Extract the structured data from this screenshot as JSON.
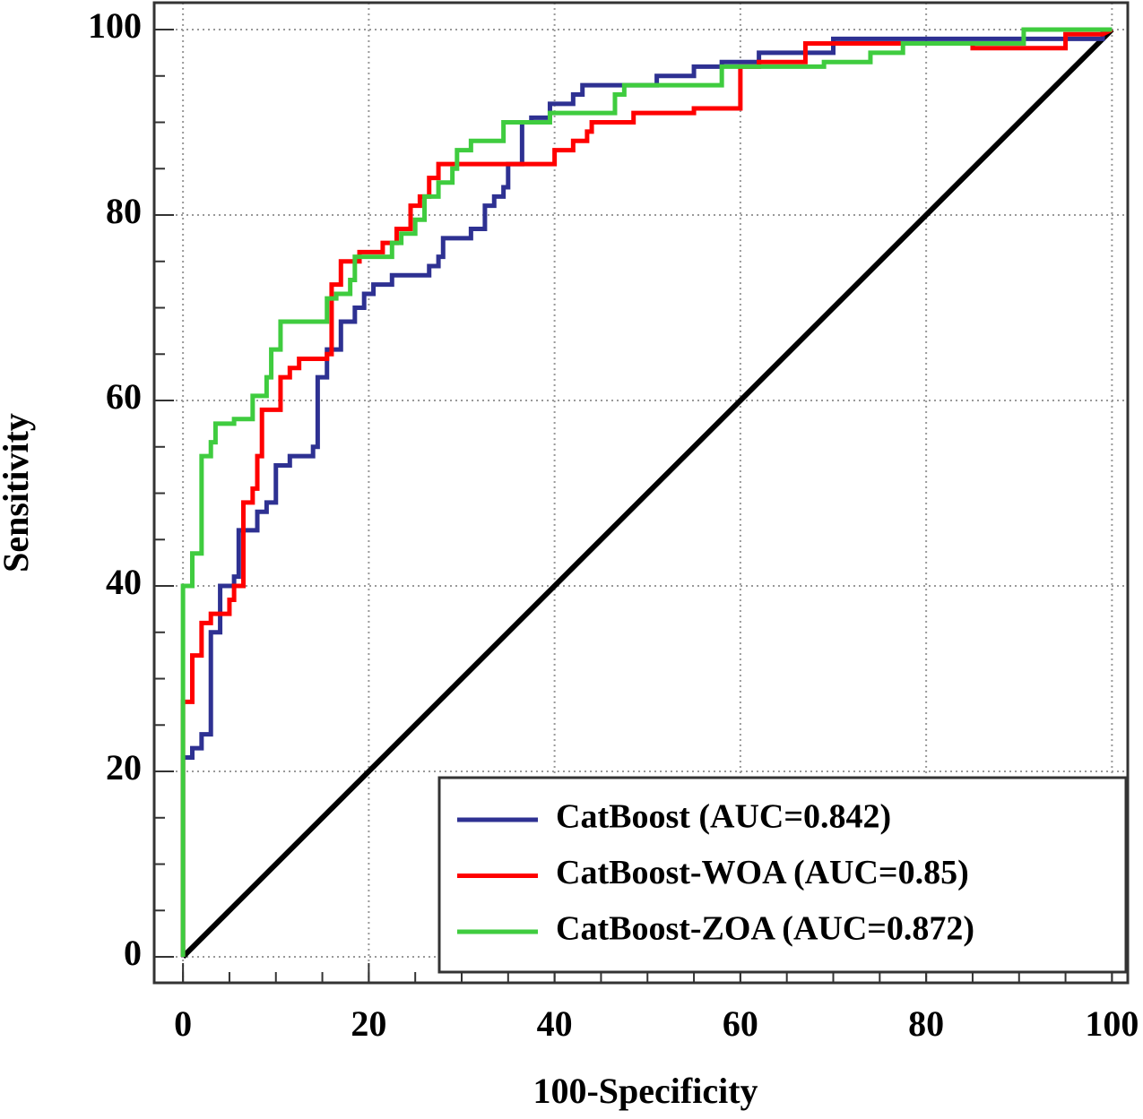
{
  "chart_data": {
    "type": "line",
    "xlabel": "100-Specificity",
    "ylabel": "Sensitivity",
    "xlim": [
      -3.1,
      101.7
    ],
    "ylim": [
      -2.8,
      102.9
    ],
    "xticks": [
      0,
      20,
      40,
      60,
      80,
      100
    ],
    "yticks": [
      0,
      20,
      40,
      60,
      80,
      100
    ],
    "minor_tick_step": 5,
    "grid": true,
    "legend": "lower right",
    "diagonal": {
      "x": [
        0,
        100
      ],
      "values": [
        0,
        100
      ],
      "color": "#000000"
    },
    "series": [
      {
        "name": "CatBoost (AUC=0.842)",
        "color": "#2e3192",
        "x": [
          0,
          0,
          1,
          1,
          2,
          2,
          3,
          3,
          4,
          4,
          5.5,
          5.5,
          6,
          6,
          8,
          8,
          9,
          9,
          10,
          10,
          11.5,
          11.5,
          14,
          14,
          14.5,
          14.5,
          15.5,
          15.5,
          17,
          17,
          18.5,
          18.5,
          19.5,
          19.5,
          20.5,
          20.5,
          22.5,
          22.5,
          26.5,
          26.5,
          27.5,
          27.5,
          28,
          28,
          31,
          31,
          32.5,
          32.5,
          33.5,
          33.5,
          34.5,
          34.5,
          35,
          35,
          36.5,
          36.5,
          37.5,
          37.5,
          39.5,
          39.5,
          42,
          42,
          43,
          43,
          51,
          51,
          55,
          55,
          58,
          58,
          62,
          62,
          70,
          70,
          99,
          99,
          100
        ],
        "values": [
          0,
          21.5,
          21.5,
          22.5,
          22.5,
          24,
          24,
          35,
          35,
          40,
          40,
          41,
          41,
          46,
          46,
          48,
          48,
          49,
          49,
          53,
          53,
          54,
          54,
          55,
          55,
          62.5,
          62.5,
          65.5,
          65.5,
          68.5,
          68.5,
          70,
          70,
          71.5,
          71.5,
          72.5,
          72.5,
          73.5,
          73.5,
          74.5,
          74.5,
          75.5,
          75.5,
          77.5,
          77.5,
          78.5,
          78.5,
          81,
          81,
          82,
          82,
          83,
          83,
          85.5,
          85.5,
          90,
          90,
          90.5,
          90.5,
          92,
          92,
          93,
          93,
          94,
          94,
          95,
          95,
          96,
          96,
          96.5,
          96.5,
          97.5,
          97.5,
          99,
          99,
          100,
          100
        ]
      },
      {
        "name": "CatBoost-WOA (AUC=0.85)",
        "color": "#ff0000",
        "x": [
          0,
          0,
          1,
          1,
          2,
          2,
          3,
          3,
          5,
          5,
          5.5,
          5.5,
          6.5,
          6.5,
          7.5,
          7.5,
          8,
          8,
          8.5,
          8.5,
          10.5,
          10.5,
          11.5,
          11.5,
          12.5,
          12.5,
          15.5,
          15.5,
          16,
          16,
          17,
          17,
          19,
          19,
          21.5,
          21.5,
          23,
          23,
          24.5,
          24.5,
          25.5,
          25.5,
          26.5,
          26.5,
          27.5,
          27.5,
          40,
          40,
          42,
          42,
          43.5,
          43.5,
          44,
          44,
          48.5,
          48.5,
          55,
          55,
          60,
          60,
          62,
          62,
          67,
          67,
          85,
          85,
          95,
          95,
          99,
          100
        ],
        "values": [
          0,
          27.5,
          27.5,
          32.5,
          32.5,
          36,
          36,
          37,
          37,
          38.5,
          38.5,
          40,
          40,
          49,
          49,
          50.5,
          50.5,
          54,
          54,
          59,
          59,
          62.5,
          62.5,
          63.5,
          63.5,
          64.5,
          64.5,
          65,
          65,
          72.5,
          72.5,
          75,
          75,
          76,
          76,
          77,
          77,
          78.5,
          78.5,
          81,
          81,
          82,
          82,
          84,
          84,
          85.5,
          85.5,
          87,
          87,
          88,
          88,
          89,
          89,
          90,
          90,
          91,
          91,
          91.5,
          91.5,
          96,
          96,
          96.5,
          96.5,
          98.5,
          98.5,
          98,
          98,
          99.5,
          99.5,
          100
        ]
      },
      {
        "name": "CatBoost-ZOA (AUC=0.872)",
        "color": "#3fcc3f",
        "x": [
          0,
          0,
          1,
          1,
          2,
          2,
          3,
          3,
          3.5,
          3.5,
          5.5,
          5.5,
          7.5,
          7.5,
          9,
          9,
          9.5,
          9.5,
          10.5,
          10.5,
          15.5,
          15.5,
          16.5,
          16.5,
          18,
          18,
          18.5,
          18.5,
          22.5,
          22.5,
          23.5,
          23.5,
          25,
          25,
          26,
          26,
          27.5,
          27.5,
          29,
          29,
          29.5,
          29.5,
          31,
          31,
          34.5,
          34.5,
          39.5,
          39.5,
          46.5,
          46.5,
          47.5,
          47.5,
          58,
          58,
          69,
          69,
          74,
          74,
          77.5,
          77.5,
          90.5,
          90.5,
          100
        ],
        "values": [
          0,
          40,
          40,
          43.5,
          43.5,
          54,
          54,
          55.5,
          55.5,
          57.5,
          57.5,
          58,
          58,
          60.5,
          60.5,
          62.5,
          62.5,
          65.5,
          65.5,
          68.5,
          68.5,
          71,
          71,
          71.5,
          71.5,
          73,
          73,
          75.5,
          75.5,
          77,
          77,
          78,
          78,
          79.5,
          79.5,
          82,
          82,
          83.5,
          83.5,
          85,
          85,
          87,
          87,
          88,
          88,
          90,
          90,
          91,
          91,
          93,
          93,
          94,
          94,
          96,
          96,
          96.5,
          96.5,
          97.5,
          97.5,
          98.5,
          98.5,
          100,
          100
        ]
      }
    ]
  }
}
